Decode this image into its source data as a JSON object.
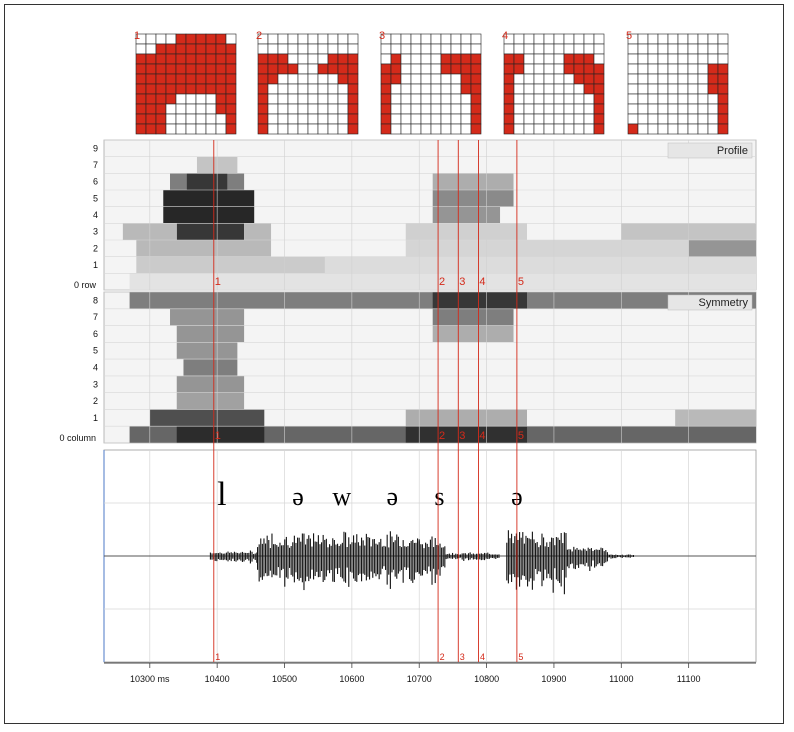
{
  "chart_data": {
    "type": "heatmap",
    "grid_labels": [
      "1",
      "2",
      "3",
      "4",
      "5"
    ],
    "grids": [
      [
        "0000111110",
        "0011111111",
        "1111111111",
        "1111111111",
        "1111111111",
        "1111111111",
        "1111000011",
        "1110000011",
        "1110000001",
        "1110000001"
      ],
      [
        "0000000000",
        "0000000000",
        "1110000111",
        "1111001111",
        "1100000011",
        "1000000001",
        "1000000001",
        "1000000001",
        "1000000001",
        "1000000001"
      ],
      [
        "0000000000",
        "0000000000",
        "0100001111",
        "1100001111",
        "1100000011",
        "1000000011",
        "1000000001",
        "1000000001",
        "1000000001",
        "1000000001"
      ],
      [
        "0000000000",
        "0000000000",
        "1100001110",
        "1100001111",
        "1000000111",
        "1000000011",
        "1000000001",
        "1000000001",
        "1000000001",
        "1000000001"
      ],
      [
        "0000000000",
        "0000000000",
        "0000000000",
        "0000000011",
        "0000000011",
        "0000000011",
        "0000000001",
        "0000000001",
        "0000000001",
        "1000000001"
      ]
    ],
    "profile": {
      "title": "Profile",
      "ylabel": "0 row",
      "yticks": [
        "9",
        "7",
        "6",
        "5",
        "4",
        "3",
        "2",
        "1"
      ],
      "cells": [
        {
          "row": 7,
          "x0": 10370,
          "x1": 10430,
          "v": 0.25
        },
        {
          "row": 6,
          "x0": 10330,
          "x1": 10440,
          "v": 0.55
        },
        {
          "row": 6,
          "x0": 10355,
          "x1": 10415,
          "v": 0.85
        },
        {
          "row": 5,
          "x0": 10320,
          "x1": 10455,
          "v": 0.92
        },
        {
          "row": 4,
          "x0": 10320,
          "x1": 10455,
          "v": 0.92
        },
        {
          "row": 3,
          "x0": 10340,
          "x1": 10440,
          "v": 0.85
        },
        {
          "row": 3,
          "x0": 10260,
          "x1": 10340,
          "v": 0.3
        },
        {
          "row": 3,
          "x0": 10440,
          "x1": 10480,
          "v": 0.3
        },
        {
          "row": 2,
          "x0": 10280,
          "x1": 10480,
          "v": 0.3
        },
        {
          "row": 1,
          "x0": 10280,
          "x1": 10560,
          "v": 0.22
        },
        {
          "row": 0,
          "x0": 10270,
          "x1": 11200,
          "v": 0.12
        },
        {
          "row": 6,
          "x0": 10720,
          "x1": 10840,
          "v": 0.35
        },
        {
          "row": 5,
          "x0": 10720,
          "x1": 10840,
          "v": 0.5
        },
        {
          "row": 4,
          "x0": 10720,
          "x1": 10820,
          "v": 0.45
        },
        {
          "row": 3,
          "x0": 10680,
          "x1": 10860,
          "v": 0.2
        },
        {
          "row": 2,
          "x0": 10680,
          "x1": 11200,
          "v": 0.18
        },
        {
          "row": 1,
          "x0": 10560,
          "x1": 11200,
          "v": 0.15
        },
        {
          "row": 2,
          "x0": 11100,
          "x1": 11200,
          "v": 0.45
        },
        {
          "row": 3,
          "x0": 11000,
          "x1": 11200,
          "v": 0.25
        }
      ]
    },
    "symmetry": {
      "title": "Symmetry",
      "ylabel": "0 column",
      "yticks": [
        "8",
        "7",
        "6",
        "5",
        "4",
        "3",
        "2",
        "1"
      ],
      "cells": [
        {
          "row": 8,
          "x0": 10270,
          "x1": 11200,
          "v": 0.55
        },
        {
          "row": 8,
          "x0": 10720,
          "x1": 10860,
          "v": 0.85
        },
        {
          "row": 7,
          "x0": 10330,
          "x1": 10440,
          "v": 0.45
        },
        {
          "row": 7,
          "x0": 10720,
          "x1": 10840,
          "v": 0.55
        },
        {
          "row": 6,
          "x0": 10340,
          "x1": 10440,
          "v": 0.45
        },
        {
          "row": 6,
          "x0": 10720,
          "x1": 10840,
          "v": 0.35
        },
        {
          "row": 5,
          "x0": 10340,
          "x1": 10430,
          "v": 0.45
        },
        {
          "row": 4,
          "x0": 10350,
          "x1": 10430,
          "v": 0.55
        },
        {
          "row": 3,
          "x0": 10340,
          "x1": 10440,
          "v": 0.45
        },
        {
          "row": 2,
          "x0": 10340,
          "x1": 10440,
          "v": 0.4
        },
        {
          "row": 1,
          "x0": 10300,
          "x1": 10470,
          "v": 0.75
        },
        {
          "row": 1,
          "x0": 10680,
          "x1": 10860,
          "v": 0.35
        },
        {
          "row": 1,
          "x0": 11080,
          "x1": 11200,
          "v": 0.3
        },
        {
          "row": 0,
          "x0": 10270,
          "x1": 11200,
          "v": 0.65
        },
        {
          "row": 0,
          "x0": 10340,
          "x1": 10470,
          "v": 0.9
        },
        {
          "row": 0,
          "x0": 10680,
          "x1": 10860,
          "v": 0.88
        }
      ]
    },
    "waveform": {
      "segments": [
        "l",
        "ə",
        "w",
        "ə",
        "s",
        "ə"
      ],
      "segment_x": [
        10395,
        10520,
        10585,
        10660,
        10730,
        10845
      ],
      "envelope": [
        {
          "x0": 10390,
          "x1": 10460,
          "a": 0.12
        },
        {
          "x0": 10460,
          "x1": 10700,
          "a": 0.55
        },
        {
          "x0": 10700,
          "x1": 10740,
          "a": 0.45
        },
        {
          "x0": 10740,
          "x1": 10820,
          "a": 0.08
        },
        {
          "x0": 10830,
          "x1": 10920,
          "a": 0.6
        },
        {
          "x0": 10920,
          "x1": 10980,
          "a": 0.25
        },
        {
          "x0": 10980,
          "x1": 11020,
          "a": 0.04
        }
      ]
    },
    "markers": [
      {
        "label": "1",
        "x": 10395
      },
      {
        "label": "2",
        "x": 10728
      },
      {
        "label": "3",
        "x": 10758
      },
      {
        "label": "4",
        "x": 10788
      },
      {
        "label": "5",
        "x": 10845
      }
    ],
    "marker_bottom_labels": [
      "1",
      "2",
      "3",
      "4",
      "5"
    ],
    "xaxis": {
      "ticks": [
        {
          "label": "10300 ms",
          "x": 10300
        },
        {
          "label": "10400",
          "x": 10400
        },
        {
          "label": "10500",
          "x": 10500
        },
        {
          "label": "10600",
          "x": 10600
        },
        {
          "label": "10700",
          "x": 10700
        },
        {
          "label": "10800",
          "x": 10800
        },
        {
          "label": "10900",
          "x": 10900
        },
        {
          "label": "11000",
          "x": 11000
        },
        {
          "label": "11100",
          "x": 11100
        }
      ],
      "xlim": [
        10232,
        11200
      ]
    },
    "colors": {
      "marker": "#d42a1a",
      "grid_fill": "#d42a1a",
      "gridline": "#c8c8c8"
    }
  }
}
